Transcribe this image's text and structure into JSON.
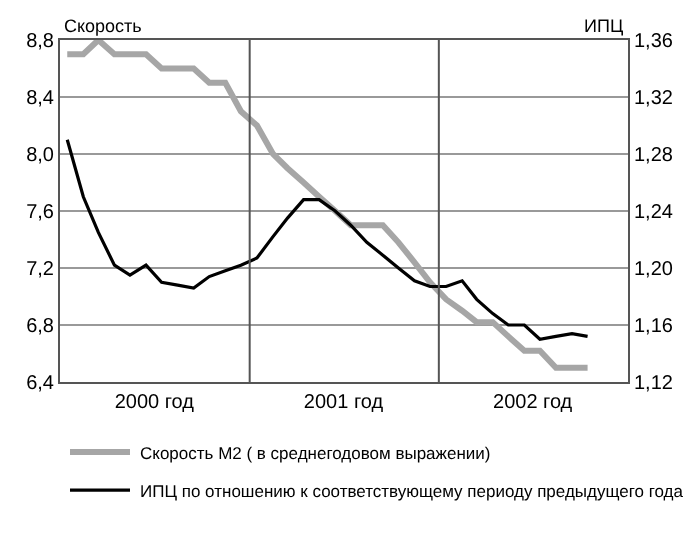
{
  "chart_data": {
    "type": "line",
    "ylabel": "Скорость",
    "y2label": "ИПЦ",
    "x": [
      "2000-01-15",
      "2000-02-15",
      "2000-03-15",
      "2000-04-15",
      "2000-05-15",
      "2000-06-15",
      "2000-07-15",
      "2000-08-15",
      "2000-09-15",
      "2000-10-15",
      "2000-11-15",
      "2000-12-15",
      "2001-01-15",
      "2001-02-15",
      "2001-03-15",
      "2001-04-15",
      "2001-05-15",
      "2001-06-15",
      "2001-07-15",
      "2001-08-15",
      "2001-09-15",
      "2001-10-15",
      "2001-11-15",
      "2001-12-15",
      "2002-01-15",
      "2002-02-15",
      "2002-03-15",
      "2002-04-15",
      "2002-05-15",
      "2002-06-15",
      "2002-07-15",
      "2002-08-15",
      "2002-09-15",
      "2002-10-15"
    ],
    "xlim": [
      "2000-01-01",
      "2003-01-01"
    ],
    "xticks": [
      {
        "value": "2000-07-01",
        "label": "2000 год"
      },
      {
        "value": "2001-07-01",
        "label": "2001 год"
      },
      {
        "value": "2002-07-01",
        "label": "2002 год"
      }
    ],
    "ylim": [
      6.4,
      8.8
    ],
    "yticks": [
      {
        "value": 6.4,
        "label": "6,4"
      },
      {
        "value": 6.8,
        "label": "6,8"
      },
      {
        "value": 7.2,
        "label": "7,2"
      },
      {
        "value": 7.6,
        "label": "7,6"
      },
      {
        "value": 8.0,
        "label": "8,0"
      },
      {
        "value": 8.4,
        "label": "8,4"
      },
      {
        "value": 8.8,
        "label": "8,8"
      }
    ],
    "y2lim": [
      1.12,
      1.36
    ],
    "y2ticks": [
      {
        "value": 1.12,
        "label": "1,12"
      },
      {
        "value": 1.16,
        "label": "1,16"
      },
      {
        "value": 1.2,
        "label": "1,20"
      },
      {
        "value": 1.24,
        "label": "1,24"
      },
      {
        "value": 1.28,
        "label": "1,28"
      },
      {
        "value": 1.32,
        "label": "1,32"
      },
      {
        "value": 1.36,
        "label": "1,36"
      }
    ],
    "series": [
      {
        "name": "Скорость М2 ( в среднегодовом выражении)",
        "color": "#a6a6a6",
        "values": [
          8.7,
          8.7,
          8.8,
          8.7,
          8.7,
          8.7,
          8.6,
          8.6,
          8.6,
          8.5,
          8.5,
          8.3,
          8.2,
          8.0,
          7.9,
          7.8,
          7.7,
          7.6,
          7.5,
          7.5,
          7.5,
          7.38,
          7.24,
          7.1,
          6.98,
          6.9,
          6.82,
          6.82,
          6.72,
          6.62,
          6.62,
          6.5,
          6.5,
          6.5
        ]
      },
      {
        "name": "ИПЦ по отношению к соответствующему периоду предыдущего года",
        "color": "#000000",
        "axis": "y2",
        "values": [
          1.29,
          1.25,
          1.225,
          1.202,
          1.195,
          1.202,
          1.19,
          1.188,
          1.186,
          1.194,
          1.198,
          1.202,
          1.207,
          1.222,
          1.235,
          1.248,
          1.248,
          1.24,
          1.23,
          1.218,
          1.209,
          1.2,
          1.191,
          1.187,
          1.187,
          1.191,
          1.178,
          1.168,
          1.16,
          1.16,
          1.15,
          1.152,
          1.154,
          1.152
        ]
      }
    ],
    "ref_lines": [
      {
        "axis": "x",
        "value": "2001-01-01",
        "color": "#555555"
      },
      {
        "axis": "x",
        "value": "2002-01-01",
        "color": "#555555"
      }
    ],
    "grid": "y",
    "legend": "bottom",
    "marker": "none",
    "line_style": "solid"
  }
}
